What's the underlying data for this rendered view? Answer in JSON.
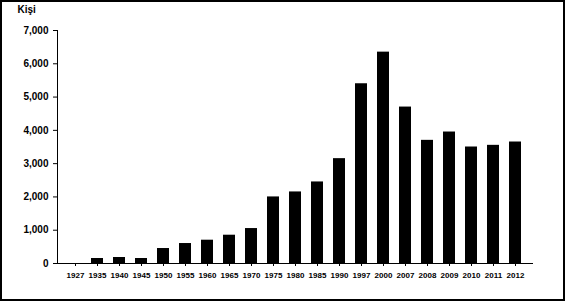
{
  "chart_data": {
    "type": "bar",
    "y_label": "Kişi",
    "categories": [
      "1927",
      "1935",
      "1940",
      "1945",
      "1950",
      "1955",
      "1960",
      "1965",
      "1970",
      "1975",
      "1980",
      "1985",
      "1990",
      "1997",
      "2000",
      "2007",
      "2008",
      "2009",
      "2010",
      "2011",
      "2012"
    ],
    "values": [
      0,
      150,
      180,
      150,
      450,
      600,
      700,
      850,
      1050,
      2000,
      2150,
      2450,
      3150,
      5400,
      6350,
      4700,
      3700,
      3950,
      3500,
      3550,
      3650
    ],
    "color": "#000000",
    "ylim": [
      0,
      7000
    ],
    "yticks": [
      0,
      1000,
      2000,
      3000,
      4000,
      5000,
      6000,
      7000
    ],
    "grid": false
  }
}
